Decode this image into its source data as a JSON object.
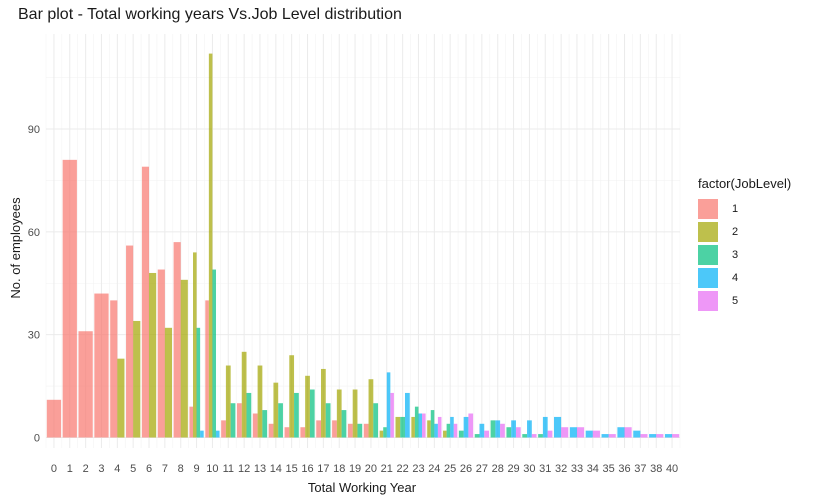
{
  "chart_data": {
    "type": "bar",
    "title": "Bar plot - Total working years Vs.Job Level distribution",
    "xlabel": "Total Working Year",
    "ylabel": "No. of employees",
    "ylim": [
      0,
      125
    ],
    "yticks": [
      0,
      30,
      60,
      90
    ],
    "grid": true,
    "legend_title": "factor(JobLevel)",
    "legend_position": "right",
    "categories": [
      "0",
      "1",
      "2",
      "3",
      "4",
      "5",
      "6",
      "7",
      "8",
      "9",
      "10",
      "11",
      "12",
      "13",
      "14",
      "15",
      "16",
      "17",
      "18",
      "19",
      "20",
      "21",
      "22",
      "23",
      "24",
      "25",
      "26",
      "27",
      "28",
      "29",
      "30",
      "31",
      "32",
      "33",
      "34",
      "35",
      "36",
      "37",
      "38",
      "40"
    ],
    "series": [
      {
        "name": "1",
        "color": "#F8766D",
        "values": [
          11,
          81,
          31,
          42,
          40,
          56,
          79,
          49,
          57,
          9,
          40,
          5,
          10,
          7,
          4,
          3,
          3,
          5,
          5,
          4,
          4,
          0,
          0,
          0,
          0,
          0,
          0,
          0,
          0,
          0,
          0,
          0,
          0,
          0,
          0,
          0,
          0,
          0,
          0,
          0
        ]
      },
      {
        "name": "2",
        "color": "#A3A500",
        "values": [
          0,
          0,
          0,
          0,
          23,
          34,
          48,
          32,
          46,
          54,
          112,
          21,
          25,
          21,
          16,
          24,
          18,
          20,
          14,
          14,
          17,
          2,
          6,
          6,
          5,
          2,
          0,
          0,
          0,
          0,
          0,
          0,
          0,
          0,
          0,
          0,
          0,
          0,
          0,
          0
        ]
      },
      {
        "name": "3",
        "color": "#00BF7D",
        "values": [
          0,
          0,
          0,
          0,
          0,
          0,
          0,
          0,
          0,
          32,
          49,
          10,
          13,
          8,
          10,
          13,
          14,
          10,
          8,
          4,
          10,
          3,
          6,
          9,
          8,
          4,
          2,
          1,
          5,
          3,
          1,
          1,
          0,
          0,
          0,
          0,
          0,
          0,
          0,
          0
        ]
      },
      {
        "name": "4",
        "color": "#00B0F6",
        "values": [
          0,
          0,
          0,
          0,
          0,
          0,
          0,
          0,
          0,
          2,
          2,
          0,
          0,
          0,
          0,
          0,
          0,
          0,
          0,
          0,
          0,
          19,
          13,
          7,
          4,
          6,
          6,
          4,
          5,
          5,
          5,
          6,
          6,
          3,
          2,
          1,
          3,
          2,
          1,
          1
        ]
      },
      {
        "name": "5",
        "color": "#E76BF3",
        "values": [
          0,
          0,
          0,
          0,
          0,
          0,
          0,
          0,
          0,
          0,
          0,
          0,
          0,
          0,
          0,
          0,
          0,
          0,
          0,
          0,
          0,
          13,
          0,
          7,
          6,
          4,
          7,
          2,
          4,
          3,
          1,
          2,
          3,
          3,
          2,
          1,
          3,
          1,
          1,
          1
        ]
      }
    ]
  }
}
